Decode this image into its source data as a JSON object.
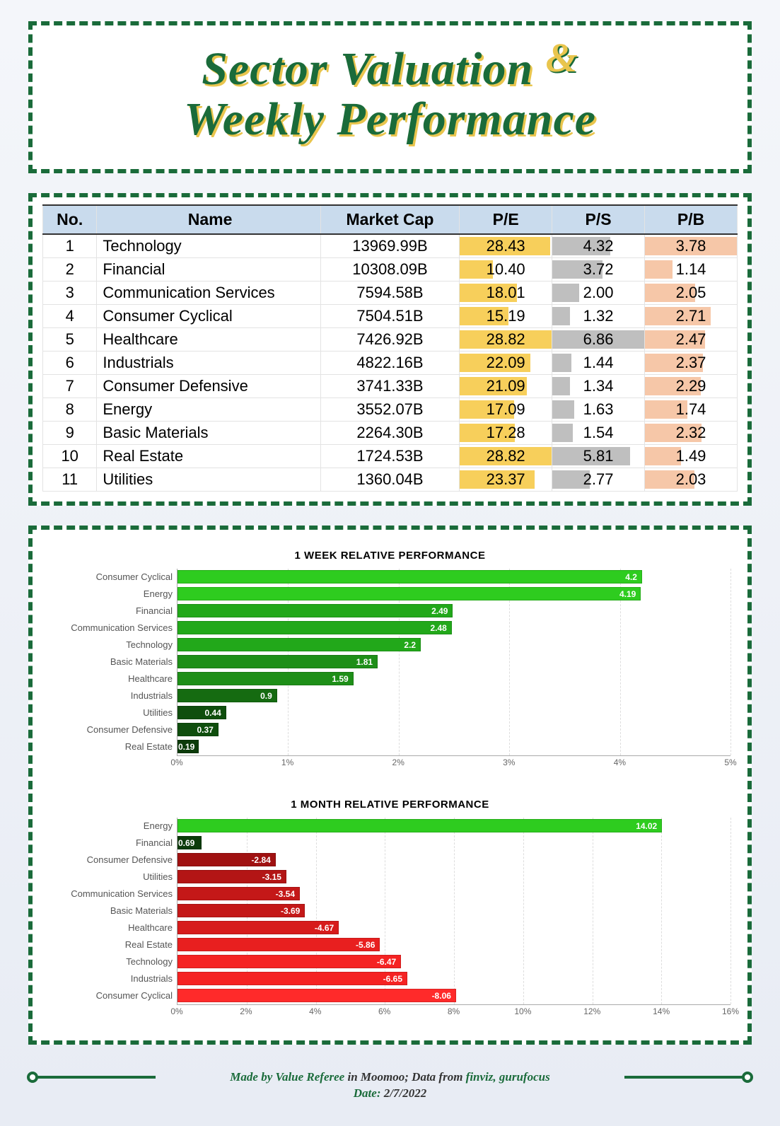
{
  "title": {
    "line1": "Sector Valuation",
    "amp": "&",
    "line2": "Weekly Performance",
    "color": "#1a6b3a",
    "shadow": "#e9c54d",
    "fontsize": 66
  },
  "border": {
    "color": "#1a6b3a",
    "style": "dashed",
    "width": 6
  },
  "background_gradient": [
    "#f4f6fa",
    "#e8ecf4"
  ],
  "table": {
    "header_bg": "#c9dbed",
    "columns": [
      "No.",
      "Name",
      "Market Cap",
      "P/E",
      "P/S",
      "P/B"
    ],
    "pe_bar_color": "#f7cf5b",
    "ps_bar_color": "#bfbfbf",
    "pb_bar_color": "#f6c7a8",
    "pe_max": 28.82,
    "ps_max": 6.86,
    "pb_max": 3.78,
    "rows": [
      {
        "no": 1,
        "name": "Technology",
        "cap": "13969.99B",
        "pe": 28.43,
        "ps": 4.32,
        "pb": 3.78
      },
      {
        "no": 2,
        "name": "Financial",
        "cap": "10308.09B",
        "pe": 10.4,
        "ps": 3.72,
        "pb": 1.14
      },
      {
        "no": 3,
        "name": "Communication Services",
        "cap": "7594.58B",
        "pe": 18.01,
        "ps": 2.0,
        "pb": 2.05
      },
      {
        "no": 4,
        "name": "Consumer Cyclical",
        "cap": "7504.51B",
        "pe": 15.19,
        "ps": 1.32,
        "pb": 2.71
      },
      {
        "no": 5,
        "name": "Healthcare",
        "cap": "7426.92B",
        "pe": 28.82,
        "ps": 6.86,
        "pb": 2.47
      },
      {
        "no": 6,
        "name": "Industrials",
        "cap": "4822.16B",
        "pe": 22.09,
        "ps": 1.44,
        "pb": 2.37
      },
      {
        "no": 7,
        "name": "Consumer Defensive",
        "cap": "3741.33B",
        "pe": 21.09,
        "ps": 1.34,
        "pb": 2.29
      },
      {
        "no": 8,
        "name": "Energy",
        "cap": "3552.07B",
        "pe": 17.09,
        "ps": 1.63,
        "pb": 1.74
      },
      {
        "no": 9,
        "name": "Basic Materials",
        "cap": "2264.30B",
        "pe": 17.28,
        "ps": 1.54,
        "pb": 2.32
      },
      {
        "no": 10,
        "name": "Real Estate",
        "cap": "1724.53B",
        "pe": 28.82,
        "ps": 5.81,
        "pb": 1.49
      },
      {
        "no": 11,
        "name": "Utilities",
        "cap": "1360.04B",
        "pe": 23.37,
        "ps": 2.77,
        "pb": 2.03
      }
    ]
  },
  "chart_week": {
    "type": "bar-horizontal",
    "title": "1 WEEK RELATIVE PERFORMANCE",
    "xmin": 0,
    "xmax": 5,
    "xtick_step": 1,
    "xtick_suffix": "%",
    "grid_color": "#dddddd",
    "label_fontsize": 13,
    "value_fontsize": 12,
    "title_fontsize": 15,
    "bars": [
      {
        "label": "Consumer Cyclical",
        "value": 4.2,
        "color": "#2ecc1f"
      },
      {
        "label": "Energy",
        "value": 4.19,
        "color": "#2ecc1f"
      },
      {
        "label": "Financial",
        "value": 2.49,
        "color": "#22a81a"
      },
      {
        "label": "Communication Services",
        "value": 2.48,
        "color": "#22a81a"
      },
      {
        "label": "Technology",
        "value": 2.2,
        "color": "#22a81a"
      },
      {
        "label": "Basic Materials",
        "value": 1.81,
        "color": "#1e8f18"
      },
      {
        "label": "Healthcare",
        "value": 1.59,
        "color": "#1e8f18"
      },
      {
        "label": "Industrials",
        "value": 0.9,
        "color": "#156b11"
      },
      {
        "label": "Utilities",
        "value": 0.44,
        "color": "#0f4e0d"
      },
      {
        "label": "Consumer Defensive",
        "value": 0.37,
        "color": "#0f4e0d"
      },
      {
        "label": "Real Estate",
        "value": 0.19,
        "color": "#0c3b0a"
      }
    ]
  },
  "chart_month": {
    "type": "bar-horizontal",
    "title": "1 MONTH RELATIVE PERFORMANCE",
    "xmin": 0,
    "xmax": 16,
    "xtick_step": 2,
    "xtick_suffix": "%",
    "grid_color": "#dddddd",
    "label_fontsize": 13,
    "value_fontsize": 12,
    "title_fontsize": 15,
    "bars": [
      {
        "label": "Energy",
        "value": 14.02,
        "color": "#2ecc1f"
      },
      {
        "label": "Financial",
        "value": 0.69,
        "color": "#0c3b0a"
      },
      {
        "label": "Consumer Defensive",
        "value": -2.84,
        "color": "#a01111"
      },
      {
        "label": "Utilities",
        "value": -3.15,
        "color": "#b31515"
      },
      {
        "label": "Communication Services",
        "value": -3.54,
        "color": "#c41818"
      },
      {
        "label": "Basic Materials",
        "value": -3.69,
        "color": "#c41818"
      },
      {
        "label": "Healthcare",
        "value": -4.67,
        "color": "#d71c1c"
      },
      {
        "label": "Real Estate",
        "value": -5.86,
        "color": "#e81f1f"
      },
      {
        "label": "Technology",
        "value": -6.47,
        "color": "#f52323"
      },
      {
        "label": "Industrials",
        "value": -6.65,
        "color": "#f52323"
      },
      {
        "label": "Consumer Cyclical",
        "value": -8.06,
        "color": "#ff2a2a"
      }
    ]
  },
  "footer": {
    "made_by_prefix": "Made by ",
    "made_by": "Value Referee",
    "made_in": " in Moomoo; Data from ",
    "sources": "finviz, gurufocus",
    "date_label": "Date: ",
    "date": "2/7/2022",
    "color": "#1a6b3a"
  }
}
